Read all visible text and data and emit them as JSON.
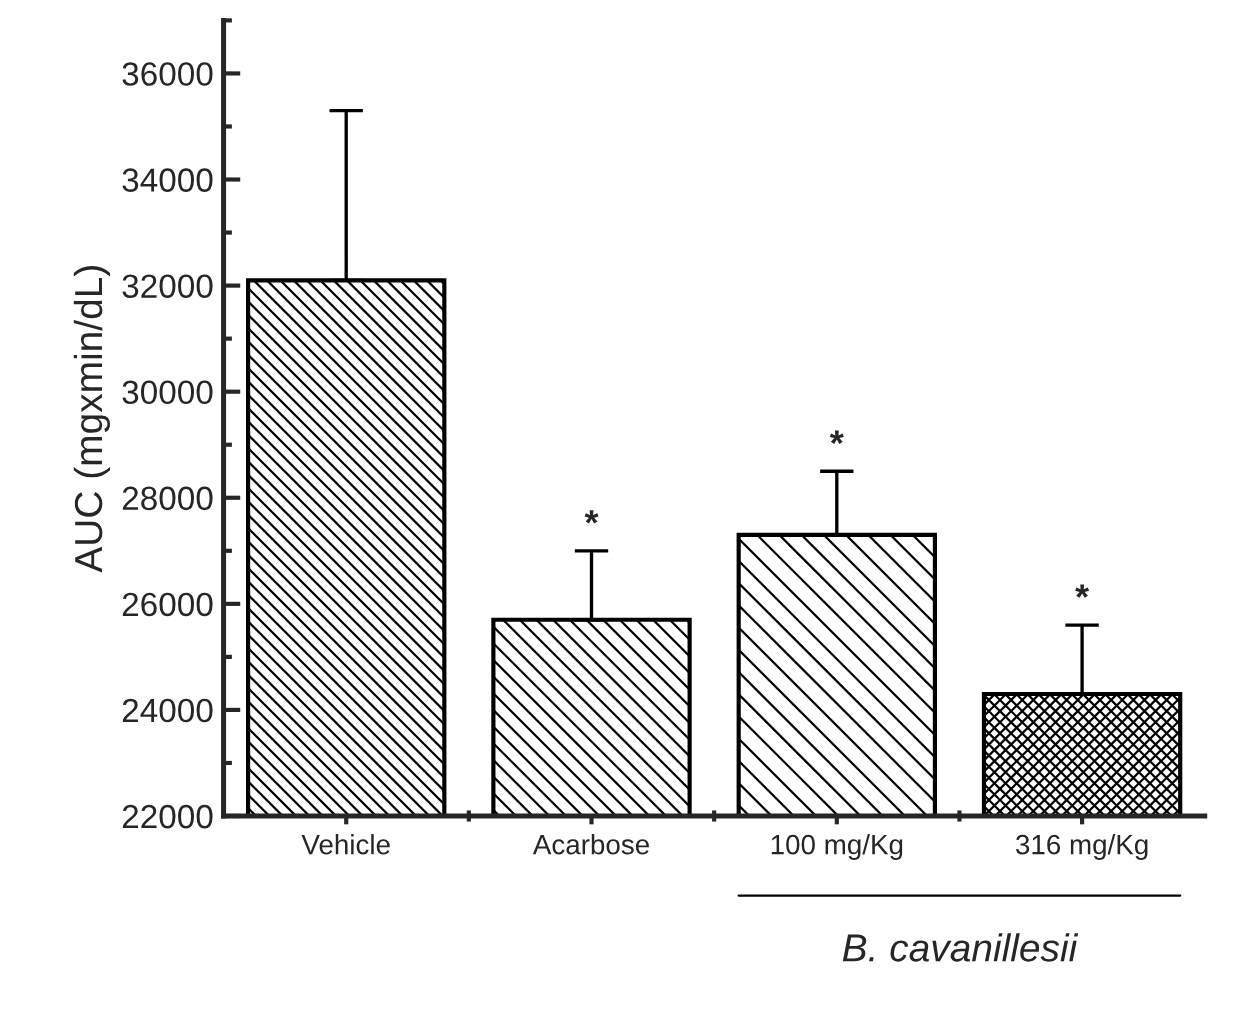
{
  "chart_data": {
    "type": "bar",
    "ylabel": "AUC (mgxmin/dL)",
    "categories": [
      "Vehicle",
      "Acarbose",
      "100 mg/Kg",
      "316 mg/Kg"
    ],
    "values": [
      32100,
      25700,
      27300,
      24300
    ],
    "errors": [
      [
        32100,
        35300
      ],
      [
        25700,
        27000
      ],
      [
        27300,
        28500
      ],
      [
        24300,
        25600
      ]
    ],
    "colors": [
      "#000000",
      "#000000",
      "#000000",
      "#000000"
    ],
    "ylim": [
      22000,
      37000
    ],
    "yticks": [
      22000,
      24000,
      26000,
      28000,
      30000,
      32000,
      34000,
      36000
    ],
    "grid": false,
    "legend": false,
    "annotations": [
      "*",
      "*",
      "*",
      "B. cavanillesii"
    ]
  }
}
